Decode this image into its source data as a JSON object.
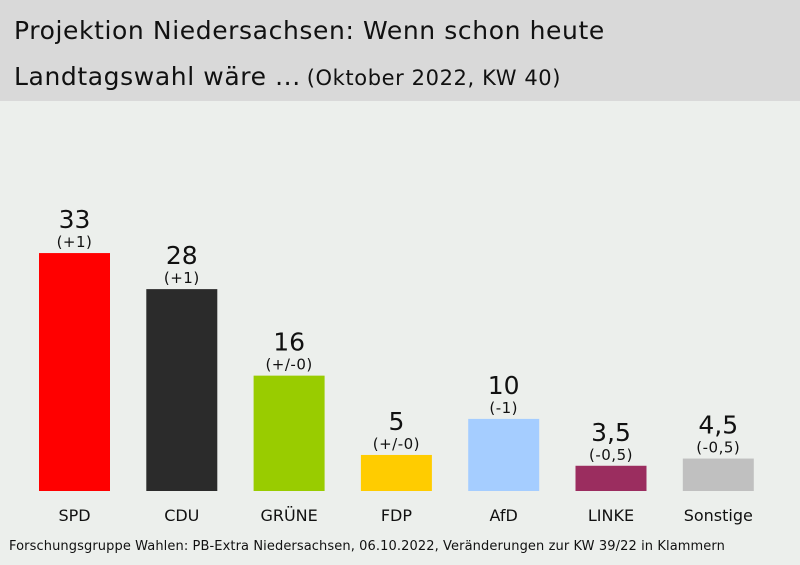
{
  "header": {
    "title_line1": "Projektion Niedersachsen: Wenn schon heute",
    "title_line2": "Landtagswahl wäre ...",
    "subtitle": "(Oktober 2022, KW 40)"
  },
  "chart_data": {
    "type": "bar",
    "title": "Projektion Niedersachsen: Wenn schon heute Landtagswahl wäre ...",
    "subtitle": "(Oktober 2022, KW 40)",
    "categories": [
      "SPD",
      "CDU",
      "GRÜNE",
      "FDP",
      "AfD",
      "LINKE",
      "Sonstige"
    ],
    "values": [
      33,
      28,
      16,
      5,
      10,
      3.5,
      4.5
    ],
    "value_labels": [
      "33",
      "28",
      "16",
      "5",
      "10",
      "3,5",
      "4,5"
    ],
    "change_labels": [
      "(+1)",
      "(+1)",
      "(+/-0)",
      "(+/-0)",
      "(-1)",
      "(-0,5)",
      "(-0,5)"
    ],
    "colors": [
      "#ff0000",
      "#2b2b2b",
      "#99cc00",
      "#ffcc00",
      "#a5cdff",
      "#9b2d5f",
      "#c0c0c0"
    ],
    "xlabel": "",
    "ylabel": "",
    "ylim": [
      0,
      40
    ],
    "grid": false
  },
  "source": "Forschungsgruppe Wahlen: PB-Extra Niedersachsen, 06.10.2022, Veränderungen zur KW 39/22 in Klammern"
}
